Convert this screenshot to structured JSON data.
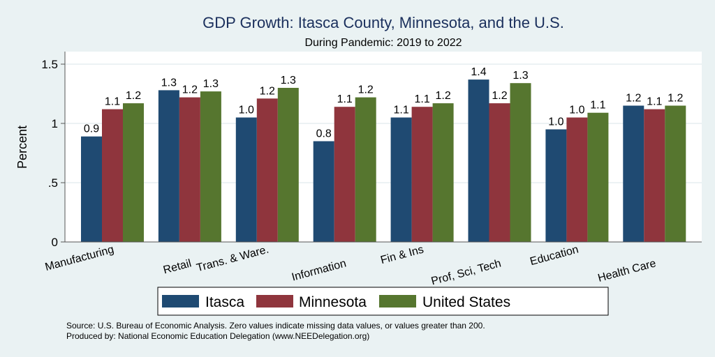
{
  "chart_data": {
    "type": "bar",
    "title": "GDP Growth: Itasca County, Minnesota, and the U.S.",
    "subtitle": "During Pandemic: 2019 to 2022",
    "xlabel": "",
    "ylabel": "Percent",
    "ylim": [
      0,
      1.6
    ],
    "yticks": [
      0,
      0.5,
      1,
      1.5
    ],
    "ytick_labels": [
      "0",
      ".5",
      "1",
      "1.5"
    ],
    "grid": true,
    "legend_position": "bottom",
    "categories": [
      "Manufacturing",
      "Retail",
      "Trans. & Ware.",
      "Information",
      "Fin & Ins",
      "Prof, Sci, Tech",
      "Education",
      "Health Care"
    ],
    "series": [
      {
        "name": "Itasca",
        "color": "#1f4a72",
        "values": [
          0.89,
          1.28,
          1.05,
          0.85,
          1.05,
          1.37,
          0.95,
          1.15
        ],
        "labels": [
          "0.9",
          "1.3",
          "1.0",
          "0.8",
          "1.1",
          "1.4",
          "1.0",
          "1.2"
        ]
      },
      {
        "name": "Minnesota",
        "color": "#8f353d",
        "values": [
          1.12,
          1.22,
          1.21,
          1.14,
          1.14,
          1.17,
          1.05,
          1.12
        ],
        "labels": [
          "1.1",
          "1.2",
          "1.2",
          "1.1",
          "1.1",
          "1.2",
          "1.0",
          "1.1"
        ]
      },
      {
        "name": "United States",
        "color": "#56762f",
        "values": [
          1.17,
          1.27,
          1.3,
          1.22,
          1.17,
          1.34,
          1.09,
          1.15
        ],
        "labels": [
          "1.2",
          "1.3",
          "1.3",
          "1.2",
          "1.2",
          "1.3",
          "1.1",
          "1.2"
        ]
      }
    ],
    "footer": [
      "Source: U.S. Bureau of Economic Analysis. Zero values indicate missing data values, or values greater than 200.",
      "Produced by: National Economic Education Delegation (www.NEEDelegation.org)"
    ]
  }
}
